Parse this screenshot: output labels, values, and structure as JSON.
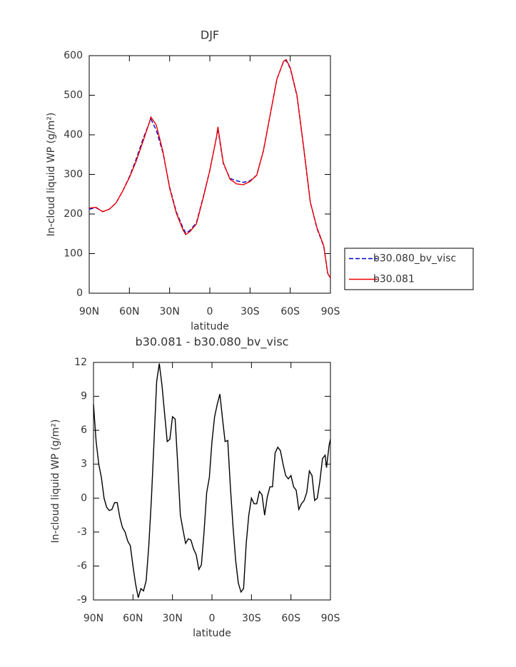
{
  "chart_data": [
    {
      "type": "line",
      "title": "DJF",
      "xlabel": "latitude",
      "ylabel": "In-cloud liquid WP (g/m²)",
      "x": [
        90,
        85,
        80,
        75,
        70,
        65,
        60,
        55,
        50,
        45,
        44,
        40,
        35,
        30,
        25,
        20,
        18,
        15,
        10,
        5,
        0,
        -5,
        -6,
        -10,
        -15,
        -20,
        -25,
        -30,
        -35,
        -40,
        -45,
        -50,
        -55,
        -57,
        -60,
        -65,
        -70,
        -75,
        -80,
        -85,
        -88,
        -90
      ],
      "series": [
        {
          "name": "b30.080_bv_visc",
          "color": "#0000cc",
          "style": "dashed",
          "values": [
            212,
            216,
            206,
            212,
            228,
            258,
            294,
            338,
            388,
            432,
            440,
            412,
            355,
            268,
            205,
            165,
            152,
            158,
            178,
            242,
            310,
            395,
            415,
            328,
            290,
            284,
            280,
            284,
            298,
            360,
            450,
            540,
            585,
            588,
            568,
            498,
            368,
            230,
            163,
            118,
            50,
            38
          ]
        },
        {
          "name": "b30.081",
          "color": "#ee0000",
          "style": "solid",
          "values": [
            215,
            217,
            206,
            212,
            228,
            258,
            292,
            333,
            382,
            432,
            445,
            425,
            358,
            265,
            202,
            160,
            148,
            155,
            175,
            240,
            310,
            395,
            420,
            330,
            288,
            276,
            274,
            282,
            298,
            360,
            450,
            540,
            586,
            590,
            570,
            500,
            370,
            230,
            165,
            120,
            50,
            38
          ]
        }
      ],
      "xlim": [
        90,
        -90
      ],
      "xticks": [
        {
          "value": 90,
          "label": "90N"
        },
        {
          "value": 60,
          "label": "60N"
        },
        {
          "value": 30,
          "label": "30N"
        },
        0,
        {
          "value": -30,
          "label": "30S"
        },
        {
          "value": -60,
          "label": "60S"
        },
        {
          "value": -90,
          "label": "90S"
        }
      ],
      "ylim": [
        0,
        600
      ],
      "yticks": [
        0,
        100,
        200,
        300,
        400,
        500,
        600
      ],
      "legend": "outside right"
    },
    {
      "type": "line",
      "title": "b30.081 - b30.080_bv_visc",
      "xlabel": "latitude",
      "ylabel": "In-cloud liquid WP (g/m²)",
      "x": [
        90,
        88,
        86,
        84,
        82,
        80,
        78,
        76,
        74,
        72,
        70,
        68,
        66,
        64,
        62,
        60,
        58,
        56,
        54,
        52,
        50,
        48,
        46,
        44,
        42,
        40,
        38,
        36,
        34,
        32,
        30,
        28,
        26,
        24,
        22,
        20,
        18,
        16,
        14,
        12,
        10,
        8,
        6,
        4,
        2,
        0,
        -2,
        -4,
        -6,
        -8,
        -10,
        -12,
        -14,
        -16,
        -18,
        -20,
        -22,
        -24,
        -26,
        -28,
        -30,
        -32,
        -34,
        -36,
        -38,
        -40,
        -42,
        -44,
        -46,
        -48,
        -50,
        -52,
        -54,
        -56,
        -58,
        -60,
        -62,
        -64,
        -66,
        -68,
        -70,
        -72,
        -74,
        -76,
        -78,
        -80,
        -82,
        -84,
        -86,
        -87,
        -89,
        -90
      ],
      "values": [
        8.3,
        5,
        3,
        1.8,
        0,
        -0.8,
        -1.1,
        -1,
        -0.4,
        -0.4,
        -1.7,
        -2.6,
        -3,
        -3.8,
        -4.2,
        -6,
        -7.6,
        -8.8,
        -8,
        -8.2,
        -7.3,
        -4.2,
        0,
        5,
        10.3,
        11.9,
        10,
        7.5,
        5,
        5.2,
        7.2,
        7,
        3,
        -1.5,
        -2.8,
        -4,
        -3.6,
        -3.7,
        -4.5,
        -5,
        -6.3,
        -5.9,
        -3,
        0.5,
        1.8,
        5,
        7.2,
        8.3,
        9.2,
        7,
        5,
        5.1,
        1,
        -2.5,
        -5.5,
        -7.5,
        -8.3,
        -8,
        -4,
        -1.5,
        0,
        -0.5,
        -0.5,
        0.6,
        0.3,
        -1.5,
        0.1,
        1,
        1,
        4,
        4.5,
        4.2,
        3,
        2,
        1.7,
        2,
        1,
        0.7,
        -1,
        -0.5,
        -0.2,
        0.5,
        2.4,
        2,
        -0.2,
        0,
        1.5,
        3.5,
        3.8,
        2.7,
        4.7,
        5.2
      ],
      "color": "#000000",
      "xlim": [
        90,
        -90
      ],
      "xticks": [
        {
          "value": 90,
          "label": "90N"
        },
        {
          "value": 60,
          "label": "60N"
        },
        {
          "value": 30,
          "label": "30N"
        },
        0,
        {
          "value": -30,
          "label": "30S"
        },
        {
          "value": -60,
          "label": "60S"
        },
        {
          "value": -90,
          "label": "90S"
        }
      ],
      "ylim": [
        -9,
        12
      ],
      "yticks": [
        -9,
        -6,
        -3,
        0,
        3,
        6,
        9,
        12
      ]
    }
  ]
}
